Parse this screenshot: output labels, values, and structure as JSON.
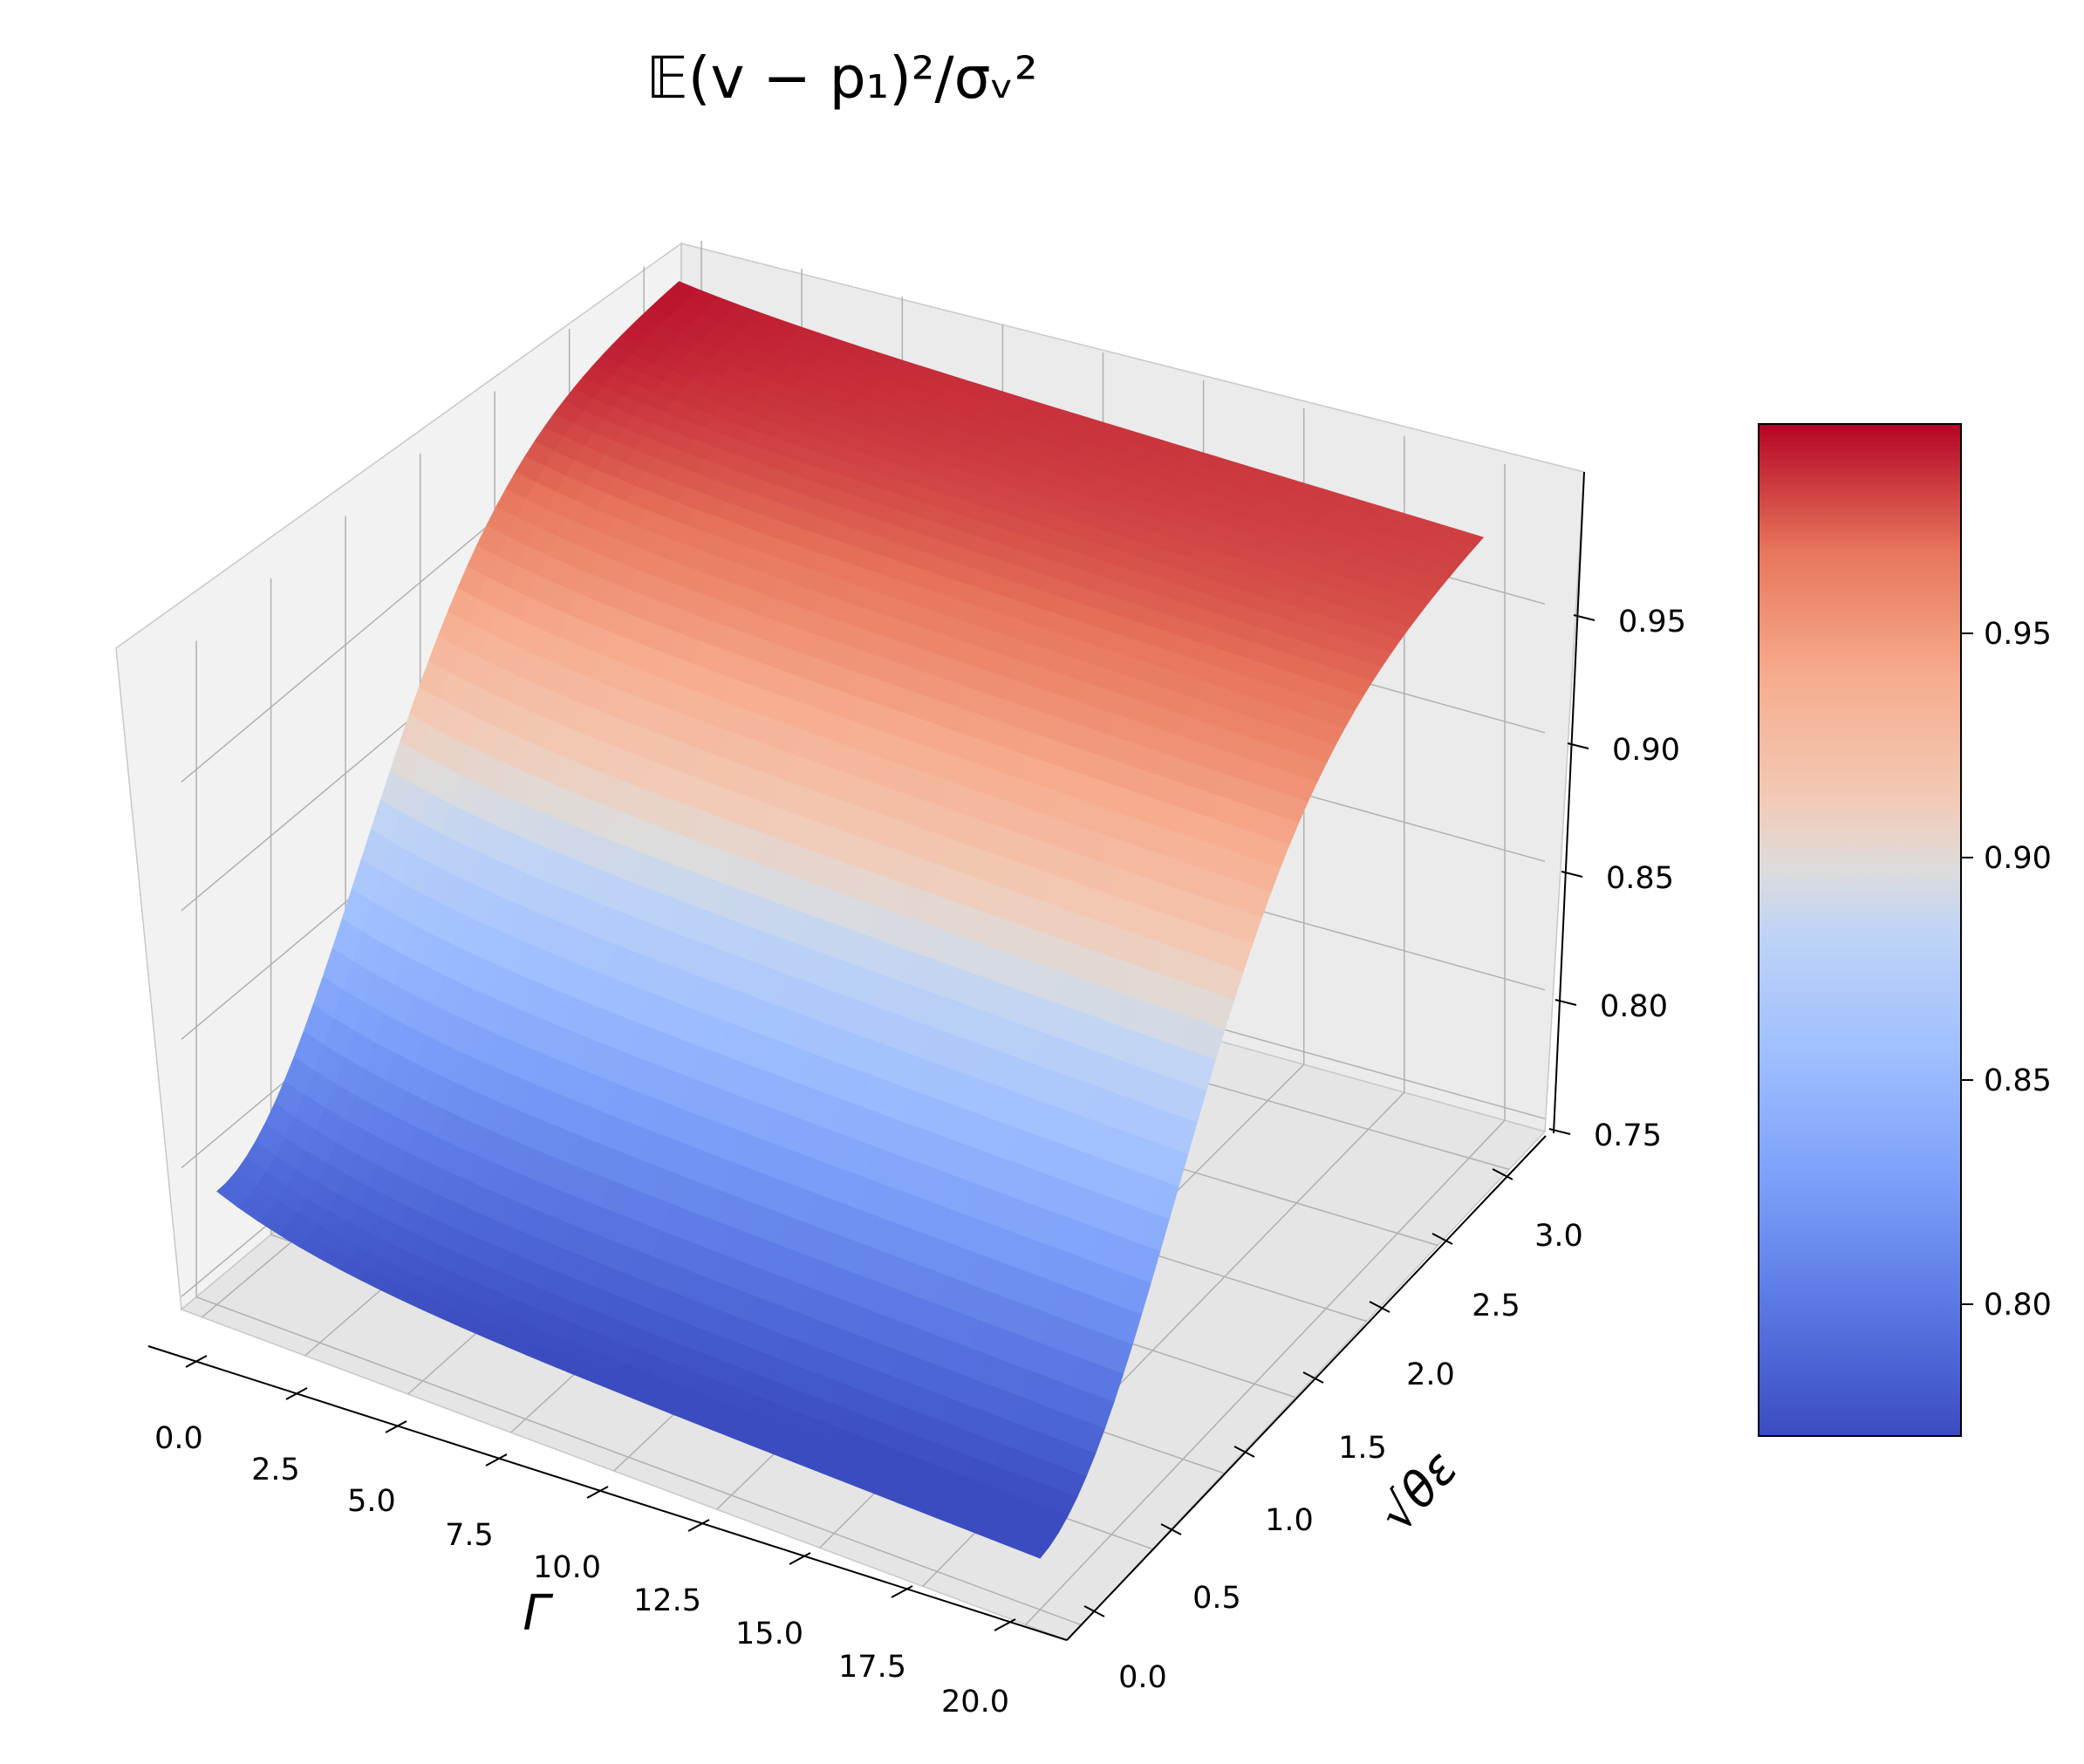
{
  "chart_data": {
    "type": "surface3d",
    "title": "𝔼(v − p₁)²/σᵥ²",
    "xlabel": "Γ",
    "ylabel": "√θε",
    "zlabel": "",
    "x_ticks": [
      "0.0",
      "2.5",
      "5.0",
      "7.5",
      "10.0",
      "12.5",
      "15.0",
      "17.5",
      "20.0"
    ],
    "y_ticks": [
      "0.0",
      "0.5",
      "1.0",
      "1.5",
      "2.0",
      "2.5",
      "3.0"
    ],
    "z_ticks": [
      "0.75",
      "0.80",
      "0.85",
      "0.90",
      "0.95"
    ],
    "colorbar_ticks": [
      "0.80",
      "0.85",
      "0.90",
      "0.95"
    ],
    "xlim": [
      -0.5,
      21
    ],
    "ylim": [
      -0.1,
      3.25
    ],
    "zlim": [
      0.745,
      1.0
    ],
    "colormap": "coolwarm",
    "color_range": [
      0.77,
      0.995
    ],
    "grid": true,
    "colorbar_position": "right",
    "sample_y": [
      0.0,
      0.5,
      1.0,
      1.5,
      2.0,
      2.5,
      3.0
    ],
    "sample_z_at_gamma_10": [
      0.78,
      0.8,
      0.85,
      0.91,
      0.95,
      0.98,
      0.99
    ]
  }
}
